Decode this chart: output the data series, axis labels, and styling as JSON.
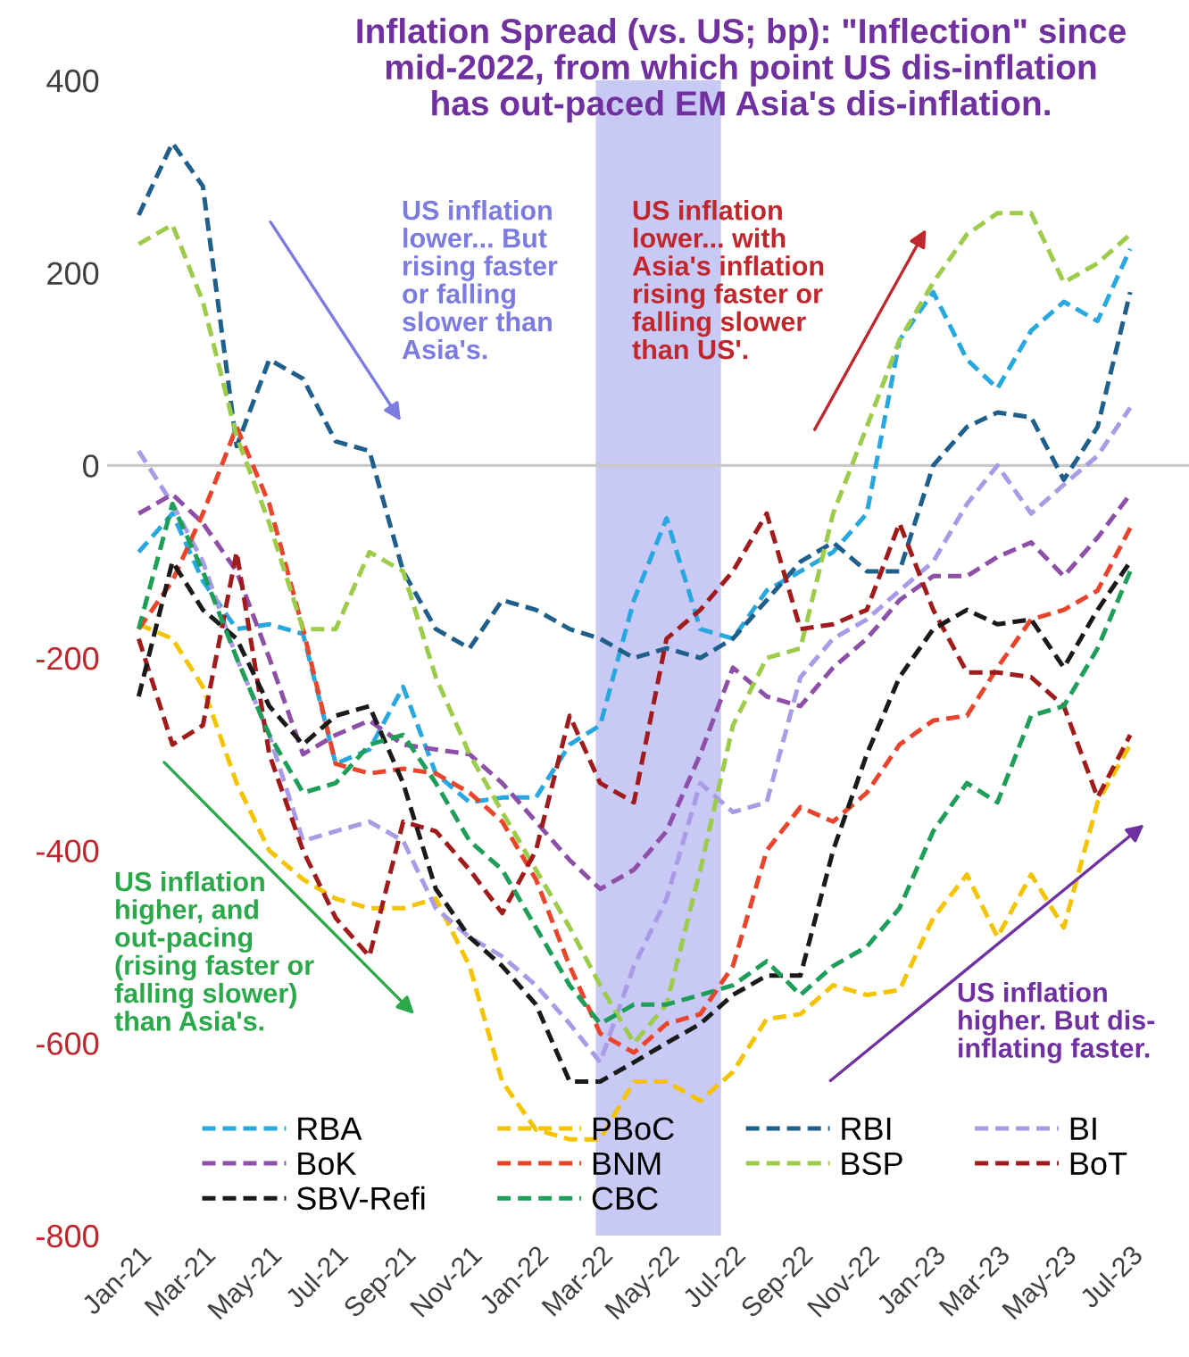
{
  "chart_data": {
    "type": "line",
    "title": "Inflation Spread (vs. US; bp): \"Inflection\" since\nmid-2022, from which point US dis-inflation\nhas out-paced EM Asia's dis-inflation.",
    "x": [
      "2021-01",
      "2021-02",
      "2021-03",
      "2021-04",
      "2021-05",
      "2021-06",
      "2021-07",
      "2021-08",
      "2021-09",
      "2021-10",
      "2021-11",
      "2021-12",
      "2022-01",
      "2022-02",
      "2022-03",
      "2022-04",
      "2022-05",
      "2022-06",
      "2022-07",
      "2022-08",
      "2022-09",
      "2022-10",
      "2022-11",
      "2022-12",
      "2023-01",
      "2023-02",
      "2023-03",
      "2023-04",
      "2023-05",
      "2023-06",
      "2023-07"
    ],
    "series": [
      {
        "name": "RBA",
        "color": "#29a8e0",
        "values": [
          -90,
          -50,
          -120,
          -170,
          -165,
          -175,
          -310,
          -295,
          -230,
          -320,
          -350,
          -345,
          -345,
          -290,
          -270,
          -140,
          -55,
          -170,
          -180,
          -130,
          -110,
          -90,
          -50,
          130,
          180,
          110,
          80,
          140,
          170,
          150,
          225
        ]
      },
      {
        "name": "PBoC",
        "color": "#f5c400",
        "values": [
          -165,
          -180,
          -230,
          -330,
          -400,
          -430,
          -450,
          -460,
          -460,
          -450,
          -520,
          -640,
          -690,
          -700,
          -700,
          -640,
          -640,
          -660,
          -630,
          -575,
          -570,
          -540,
          -550,
          -545,
          -470,
          -425,
          -490,
          -425,
          -480,
          -350,
          -290
        ]
      },
      {
        "name": "RBI",
        "color": "#1f5f8b",
        "values": [
          260,
          335,
          290,
          20,
          110,
          90,
          25,
          15,
          -110,
          -170,
          -190,
          -140,
          -150,
          -170,
          -180,
          -200,
          -190,
          -200,
          -180,
          -140,
          -100,
          -80,
          -110,
          -110,
          0,
          40,
          55,
          50,
          -15,
          40,
          180
        ]
      },
      {
        "name": "BI",
        "color": "#a99be6",
        "values": [
          15,
          -40,
          -100,
          -200,
          -280,
          -390,
          -380,
          -370,
          -390,
          -460,
          -490,
          -510,
          -540,
          -580,
          -620,
          -520,
          -450,
          -330,
          -360,
          -350,
          -220,
          -180,
          -160,
          -130,
          -100,
          -40,
          0,
          -50,
          -20,
          10,
          60
        ]
      },
      {
        "name": "BoK",
        "color": "#8e4fa8",
        "values": [
          -50,
          -30,
          -60,
          -110,
          -200,
          -300,
          -280,
          -265,
          -290,
          -295,
          -300,
          -330,
          -370,
          -410,
          -440,
          -420,
          -380,
          -300,
          -210,
          -240,
          -250,
          -210,
          -180,
          -140,
          -115,
          -115,
          -95,
          -80,
          -115,
          -75,
          -30
        ]
      },
      {
        "name": "BNM",
        "color": "#e8452c",
        "values": [
          -170,
          -120,
          -50,
          40,
          -40,
          -170,
          -310,
          -320,
          -315,
          -320,
          -340,
          -370,
          -430,
          -520,
          -590,
          -610,
          -580,
          -570,
          -520,
          -400,
          -355,
          -370,
          -340,
          -290,
          -265,
          -260,
          -210,
          -160,
          -150,
          -130,
          -65
        ]
      },
      {
        "name": "BSP",
        "color": "#9ccc4a",
        "values": [
          230,
          250,
          170,
          30,
          -60,
          -170,
          -170,
          -90,
          -110,
          -220,
          -300,
          -360,
          -420,
          -480,
          -540,
          -600,
          -560,
          -420,
          -270,
          -200,
          -190,
          -50,
          40,
          130,
          190,
          240,
          262,
          262,
          190,
          210,
          240
        ]
      },
      {
        "name": "BoT",
        "color": "#a01c1c",
        "values": [
          -180,
          -290,
          -270,
          -90,
          -300,
          -400,
          -470,
          -510,
          -370,
          -380,
          -420,
          -465,
          -400,
          -260,
          -330,
          -350,
          -180,
          -150,
          -110,
          -50,
          -170,
          -165,
          -150,
          -60,
          -150,
          -215,
          -215,
          -220,
          -250,
          -345,
          -280
        ]
      },
      {
        "name": "SBV-Refi",
        "color": "#1a1a1a",
        "values": [
          -240,
          -100,
          -150,
          -180,
          -250,
          -290,
          -260,
          -250,
          -330,
          -440,
          -490,
          -520,
          -560,
          -640,
          -640,
          -620,
          -600,
          -580,
          -550,
          -530,
          -530,
          -400,
          -300,
          -220,
          -170,
          -150,
          -165,
          -160,
          -210,
          -150,
          -100
        ]
      },
      {
        "name": "CBC",
        "color": "#1f9e5a",
        "values": [
          -170,
          -40,
          -110,
          -200,
          -280,
          -340,
          -330,
          -290,
          -280,
          -330,
          -390,
          -420,
          -480,
          -540,
          -580,
          -560,
          -560,
          -550,
          -540,
          -515,
          -550,
          -520,
          -500,
          -460,
          -380,
          -330,
          -350,
          -260,
          -250,
          -190,
          -110
        ]
      }
    ],
    "ylim": [
      -800,
      400
    ],
    "yticks": [
      -800,
      -600,
      -400,
      -200,
      0,
      200,
      400
    ],
    "xlim": [
      "2020-12-03",
      "2023-08-24"
    ],
    "xticks": [
      {
        "value": "2021-01",
        "label": "Jan-21"
      },
      {
        "value": "2021-03",
        "label": "Mar-21"
      },
      {
        "value": "2021-05",
        "label": "May-21"
      },
      {
        "value": "2021-07",
        "label": "Jul-21"
      },
      {
        "value": "2021-09",
        "label": "Sep-21"
      },
      {
        "value": "2021-11",
        "label": "Nov-21"
      },
      {
        "value": "2022-01",
        "label": "Jan-22"
      },
      {
        "value": "2022-03",
        "label": "Mar-22"
      },
      {
        "value": "2022-05",
        "label": "May-22"
      },
      {
        "value": "2022-07",
        "label": "Jul-22"
      },
      {
        "value": "2022-09",
        "label": "Sep-22"
      },
      {
        "value": "2022-11",
        "label": "Nov-22"
      },
      {
        "value": "2023-01",
        "label": "Jan-23"
      },
      {
        "value": "2023-03",
        "label": "Mar-23"
      },
      {
        "value": "2023-05",
        "label": "May-23"
      },
      {
        "value": "2023-07",
        "label": "Jul-23"
      }
    ],
    "ref_lines": [
      {
        "axis": "y",
        "value": 0,
        "color": "#c8c8c8"
      }
    ],
    "bands": [
      {
        "axis": "x",
        "from": "2022-02-25",
        "to": "2022-06-20",
        "color": "#c9c9f5"
      }
    ],
    "annotations": [
      "US inflation\nlower... But\nrising faster\nor falling\nslower than\nAsia's.",
      "US inflation\nlower... with\nAsia's inflation\nrising faster or\nfalling slower\nthan US'.",
      "US inflation\nhigher, and\nout-pacing\n(rising faster or\nfalling slower)\nthan Asia's.",
      "US inflation\nhigher. But dis-\ninflating faster."
    ],
    "legend": "bottom",
    "line_style": "dashed",
    "marker": "none",
    "grid": false
  }
}
